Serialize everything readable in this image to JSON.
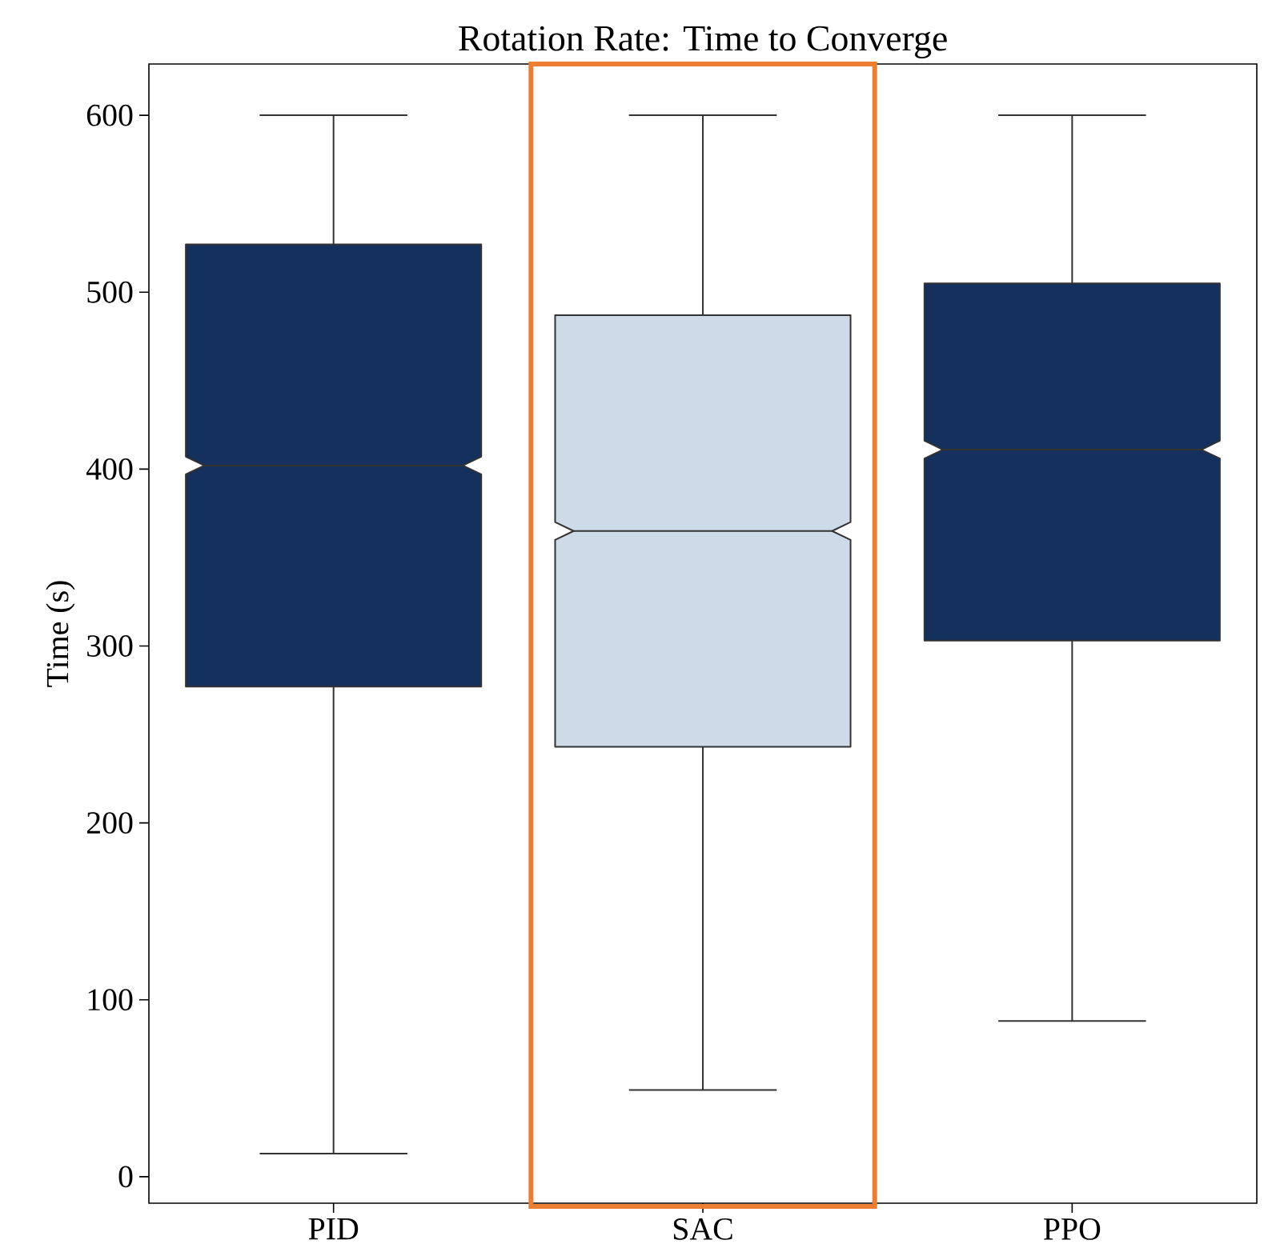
{
  "chart_data": {
    "type": "box",
    "title": "Rotation Rate: Time to Converge",
    "ylabel": "Time (s)",
    "categories": [
      "PID",
      "SAC",
      "PPO"
    ],
    "colors": [
      "#14305c",
      "#cddbe9",
      "#14305c"
    ],
    "boxes": [
      {
        "low": 13,
        "q1": 277,
        "median": 402,
        "q3": 527,
        "high": 600
      },
      {
        "low": 49,
        "q1": 243,
        "median": 365,
        "q3": 487,
        "high": 600
      },
      {
        "low": 88,
        "q1": 303,
        "median": 411,
        "q3": 505,
        "high": 600
      }
    ],
    "ylim": [
      -15,
      629
    ],
    "yticks": [
      0,
      100,
      200,
      300,
      400,
      500,
      600
    ],
    "grid": false
  }
}
